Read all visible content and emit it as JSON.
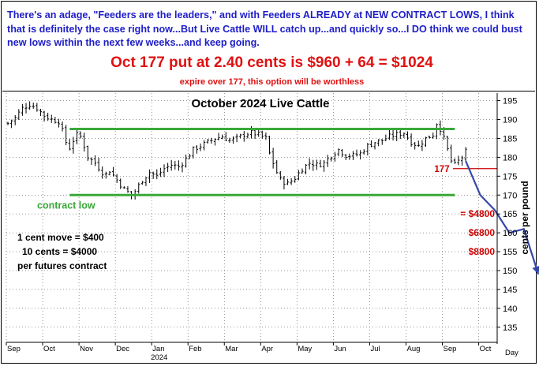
{
  "header": {
    "commentary": "There's an adage, \"Feeders are the leaders,\" and with Feeders ALREADY at NEW CONTRACT LOWS, I think that is definitely the case right now...But Live Cattle WILL catch up...and quickly so...I DO think we could bust new lows within the next few weeks...and keep going.",
    "offer": "Oct 177 put at 2.40 cents is $960 + 64 = $1024",
    "note": "expire over 177, this option will be worthless"
  },
  "colors": {
    "commentary": "#1e1ec8",
    "offer": "#e01010",
    "support": "#3aa83a",
    "strike": "#cc0000",
    "projection": "#3548a8",
    "bars": "#000000"
  },
  "chart_data": {
    "type": "ohlc",
    "title": "October 2024 Live Cattle",
    "ylabel": "cents per pound",
    "ylim": [
      131,
      197
    ],
    "yticks": [
      135,
      140,
      145,
      150,
      155,
      160,
      165,
      170,
      175,
      180,
      185,
      190,
      195
    ],
    "x_months": [
      "Sep",
      "Oct",
      "Nov",
      "Dec",
      "Jan",
      "Feb",
      "Mar",
      "Apr",
      "May",
      "Jun",
      "Jul",
      "Aug",
      "Sep",
      "Oct"
    ],
    "year_label": "2024",
    "x_axis_end_label": "Day",
    "price_path": [
      [
        0,
        189
      ],
      [
        2,
        190.5
      ],
      [
        4,
        193
      ],
      [
        6,
        194
      ],
      [
        8,
        193
      ],
      [
        10,
        191
      ],
      [
        12,
        190
      ],
      [
        14,
        189.5
      ],
      [
        15,
        187
      ],
      [
        16,
        184
      ],
      [
        17,
        182.5
      ],
      [
        18,
        184.5
      ],
      [
        19,
        186
      ],
      [
        20,
        185.5
      ],
      [
        21,
        183
      ],
      [
        22,
        180
      ],
      [
        24,
        178.5
      ],
      [
        26,
        176
      ],
      [
        27,
        175.5
      ],
      [
        28,
        176.5
      ],
      [
        30,
        174
      ],
      [
        32,
        171.5
      ],
      [
        34,
        170
      ],
      [
        35,
        171
      ],
      [
        37,
        174
      ],
      [
        39,
        176
      ],
      [
        41,
        175
      ],
      [
        43,
        177
      ],
      [
        45,
        178
      ],
      [
        47,
        177.5
      ],
      [
        49,
        179.5
      ],
      [
        51,
        182
      ],
      [
        53,
        183
      ],
      [
        55,
        184
      ],
      [
        57,
        185
      ],
      [
        59,
        185.5
      ],
      [
        61,
        184.5
      ],
      [
        63,
        185
      ],
      [
        65,
        186
      ],
      [
        67,
        186.5
      ],
      [
        69,
        186
      ],
      [
        71,
        185
      ],
      [
        72,
        181
      ],
      [
        73,
        178.5
      ],
      [
        74,
        176
      ],
      [
        75,
        174
      ],
      [
        77,
        173
      ],
      [
        79,
        174.5
      ],
      [
        81,
        177
      ],
      [
        83,
        178.5
      ],
      [
        85,
        178
      ],
      [
        87,
        178.5
      ],
      [
        89,
        180.5
      ],
      [
        91,
        182
      ],
      [
        93,
        180.5
      ],
      [
        95,
        180.5
      ],
      [
        97,
        181
      ],
      [
        99,
        183
      ],
      [
        101,
        184
      ],
      [
        103,
        184.5
      ],
      [
        105,
        185.5
      ],
      [
        107,
        186
      ],
      [
        109,
        186.5
      ],
      [
        111,
        184
      ],
      [
        113,
        183
      ],
      [
        115,
        185
      ],
      [
        117,
        186
      ],
      [
        118,
        189
      ],
      [
        119,
        187.5
      ],
      [
        120,
        185
      ],
      [
        121,
        182
      ],
      [
        122,
        179
      ],
      [
        123,
        178
      ],
      [
        124,
        179
      ],
      [
        125,
        180
      ],
      [
        126,
        181.5
      ]
    ],
    "support_high": {
      "value": 187.5,
      "x": [
        17,
        123
      ]
    },
    "support_low": {
      "value": 170,
      "x": [
        17,
        123
      ],
      "label": "contract low"
    },
    "strike": {
      "value": 177,
      "label": "177"
    },
    "projection": [
      [
        126,
        179
      ],
      [
        130,
        170
      ],
      [
        134,
        166
      ],
      [
        138,
        160
      ],
      [
        142,
        161
      ],
      [
        146,
        149
      ]
    ],
    "loss_levels": [
      {
        "value": 165,
        "label": "= $4800"
      },
      {
        "value": 160,
        "label": "$6800"
      },
      {
        "value": 155,
        "label": "$8800"
      }
    ],
    "notes": [
      "1 cent move = $400",
      "10 cents = $4000",
      "per futures contract"
    ]
  }
}
